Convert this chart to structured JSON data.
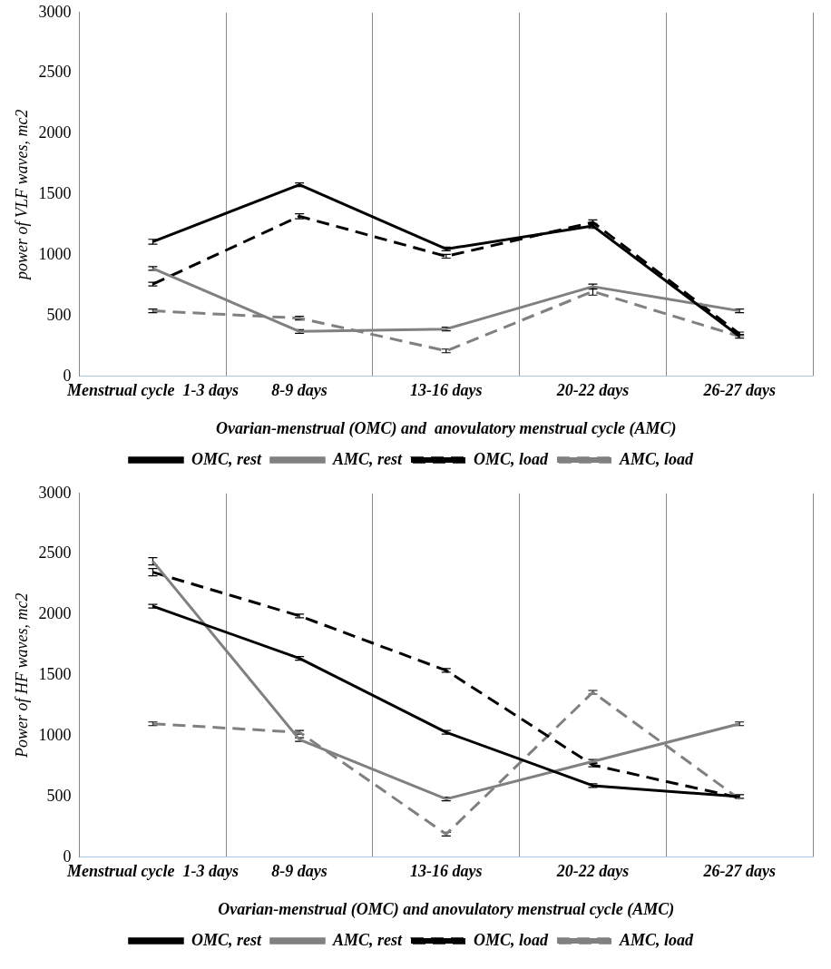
{
  "chart_data": [
    {
      "type": "line",
      "categories": [
        "Menstrual cycle  1-3 days",
        "8-9 days",
        "13-16 days",
        "20-22 days",
        "26-27 days"
      ],
      "xlabel": "Ovarian-menstrual (OMC) and  anovulatory menstrual cycle (AMC)",
      "ylabel": "power of VLF waves, mc2",
      "ylim": [
        0,
        3000
      ],
      "yticks": [
        0,
        500,
        1000,
        1500,
        2000,
        2500,
        3000
      ],
      "grid": "x",
      "legend": "bottom",
      "marker": "none",
      "series": [
        {
          "name": "OMC, rest",
          "color": "#000000",
          "line_style": "solid",
          "values": [
            1110,
            1580,
            1050,
            1240,
            330
          ],
          "errors": [
            20,
            15,
            15,
            20,
            15
          ]
        },
        {
          "name": "AMC, rest",
          "color": "#808080",
          "line_style": "solid",
          "values": [
            890,
            370,
            390,
            740,
            540
          ],
          "errors": [
            15,
            15,
            15,
            20,
            15
          ]
        },
        {
          "name": "OMC, load",
          "color": "#000000",
          "line_style": "dashed",
          "values": [
            760,
            1320,
            990,
            1270,
            350
          ],
          "errors": [
            15,
            20,
            15,
            20,
            15
          ]
        },
        {
          "name": "AMC, load",
          "color": "#808080",
          "line_style": "dashed",
          "values": [
            540,
            480,
            210,
            700,
            330
          ],
          "errors": [
            15,
            15,
            15,
            30,
            null
          ]
        }
      ]
    },
    {
      "type": "line",
      "categories": [
        "Menstrual cycle  1-3 days",
        "8-9 days",
        "13-16 days",
        "20-22 days",
        "26-27 days"
      ],
      "xlabel": "Ovarian-menstrual (OMC) and anovulatory menstrual cycle (AMC)",
      "ylabel": "Power of HF waves, mc2",
      "ylim": [
        0,
        3000
      ],
      "yticks": [
        0,
        500,
        1000,
        1500,
        2000,
        2500,
        3000
      ],
      "grid": "x",
      "legend": "bottom",
      "marker": "none",
      "series": [
        {
          "name": "OMC, rest",
          "color": "#000000",
          "line_style": "solid",
          "values": [
            2070,
            1640,
            1030,
            590,
            500
          ],
          "errors": [
            15,
            15,
            15,
            15,
            15
          ]
        },
        {
          "name": "AMC, rest",
          "color": "#808080",
          "line_style": "solid",
          "values": [
            2440,
            970,
            480,
            790,
            1100
          ],
          "errors": [
            30,
            15,
            15,
            15,
            15
          ]
        },
        {
          "name": "OMC, load",
          "color": "#000000",
          "line_style": "dashed",
          "values": [
            2350,
            1990,
            1540,
            760,
            490
          ],
          "errors": [
            30,
            15,
            15,
            15,
            null
          ]
        },
        {
          "name": "AMC, load",
          "color": "#808080",
          "line_style": "dashed",
          "values": [
            1100,
            1030,
            190,
            1360,
            480
          ],
          "errors": [
            15,
            15,
            15,
            15,
            null
          ]
        }
      ]
    }
  ]
}
